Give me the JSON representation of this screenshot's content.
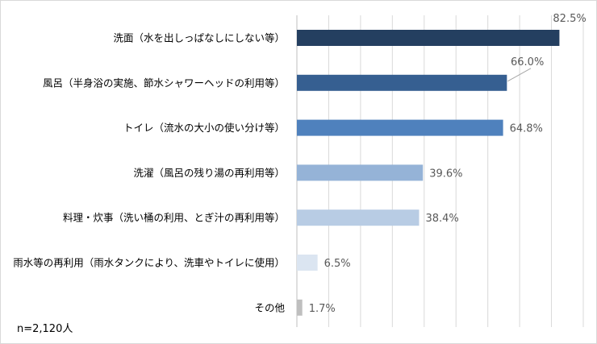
{
  "chart_data": {
    "type": "bar",
    "orientation": "horizontal",
    "categories": [
      "洗面（水を出しっぱなしにしない等）",
      "風呂（半身浴の実施、節水シャワーヘッドの利用等）",
      "トイレ（流水の大小の使い分け等）",
      "洗濯（風呂の残り湯の再利用等）",
      "料理・炊事（洗い桶の利用、とぎ汁の再利用等）",
      "雨水等の再利用（雨水タンクにより、洗車やトイレに使用）",
      "その他"
    ],
    "values": [
      82.5,
      66.0,
      64.8,
      39.6,
      38.4,
      6.5,
      1.7
    ],
    "value_labels": [
      "82.5%",
      "66.0%",
      "64.8%",
      "39.6%",
      "38.4%",
      "6.5%",
      "1.7%"
    ],
    "colors": [
      "#243f60",
      "#365f91",
      "#4f81bd",
      "#95b3d7",
      "#b8cce4",
      "#dbe5f1",
      "#bfbfbf"
    ],
    "xlim": [
      0,
      90
    ],
    "grid": true,
    "grid_step": 10,
    "axis_tick_labels": false
  },
  "note": "n=2,120人"
}
